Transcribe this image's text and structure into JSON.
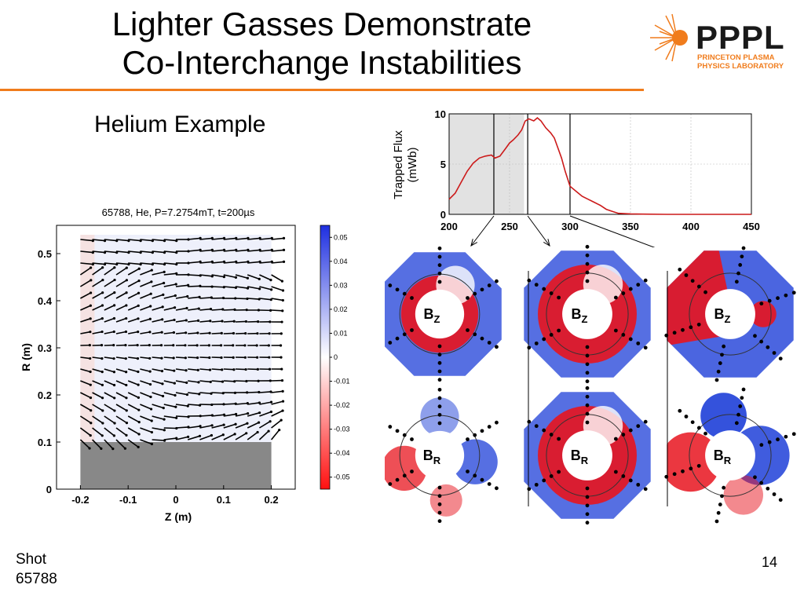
{
  "slide": {
    "title_line1": "Lighter Gasses Demonstrate",
    "title_line2": "Co-Interchange Instabilities",
    "subtitle": "Helium Example",
    "shot_label": "Shot",
    "shot_number": "65788",
    "page_number": "14",
    "accent_color": "#f07c1c"
  },
  "logo": {
    "main": "PPPL",
    "line1": "PRINCETON PLASMA",
    "line2": "PHYSICS LABORATORY",
    "text_color": "#1a1a1a",
    "sub_color": "#f07c1c"
  },
  "chart_data": [
    {
      "type": "line",
      "ylabel_line1": "Trapped Flux",
      "ylabel_line2": "(mWb)",
      "xlim": [
        200,
        450
      ],
      "ylim": [
        0,
        10
      ],
      "x_ticks": [
        200,
        250,
        300,
        350,
        400,
        450
      ],
      "y_ticks": [
        0,
        5,
        10
      ],
      "grid": true,
      "shaded_region": [
        200,
        262
      ],
      "marker_lines": [
        237,
        265,
        300
      ],
      "line_color": "#cc1a1a",
      "series": [
        {
          "x": [
            200,
            205,
            210,
            215,
            220,
            225,
            230,
            235,
            238,
            242,
            247,
            250,
            253,
            257,
            260,
            263,
            266,
            270,
            273,
            276,
            280,
            284,
            287,
            290,
            293,
            296,
            300,
            305,
            310,
            315,
            320,
            325,
            330,
            335,
            340,
            350,
            360,
            380,
            400,
            450
          ],
          "y": [
            1.5,
            2.1,
            3.2,
            4.3,
            5.1,
            5.6,
            5.8,
            5.9,
            5.6,
            5.8,
            6.6,
            7.1,
            7.4,
            7.9,
            8.4,
            9.3,
            9.5,
            9.3,
            9.6,
            9.3,
            8.6,
            8.1,
            7.6,
            6.6,
            5.6,
            4.3,
            2.8,
            2.3,
            1.8,
            1.5,
            1.2,
            0.9,
            0.5,
            0.3,
            0.1,
            0.05,
            0.02,
            0.0,
            0.0,
            0.0
          ]
        }
      ]
    },
    {
      "type": "vector-field",
      "title": "65788, He, P=7.2754mT, t=200µs",
      "xlabel": "Z (m)",
      "ylabel": "R (m)",
      "xlim": [
        -0.25,
        0.25
      ],
      "ylim": [
        0,
        0.56
      ],
      "x_ticks": [
        "-0.2",
        "-0.1",
        "0",
        "0.1",
        "0.2"
      ],
      "y_ticks": [
        "0",
        "0.1",
        "0.2",
        "0.3",
        "0.4",
        "0.5"
      ],
      "colorbar_ticks": [
        "0.05",
        "0.04",
        "0.03",
        "0.02",
        "0.01",
        "0",
        "-0.01",
        "-0.02",
        "-0.03",
        "-0.04",
        "-0.05"
      ],
      "colorbar_range": [
        -0.055,
        0.055
      ],
      "rods": {
        "z_range": [
          -0.2,
          0.2
        ],
        "r_range": [
          0,
          0.1
        ],
        "color": "#888888"
      }
    }
  ],
  "panels": {
    "top": [
      {
        "label": "B",
        "sub": "Z"
      },
      {
        "label": "B",
        "sub": "Z"
      },
      {
        "label": "B",
        "sub": "Z"
      }
    ],
    "bottom": [
      {
        "label": "B",
        "sub": "R"
      },
      {
        "label": "B",
        "sub": "R"
      },
      {
        "label": "B",
        "sub": "R"
      }
    ],
    "red": "#e8141e",
    "blue": "#1e3fd8"
  }
}
